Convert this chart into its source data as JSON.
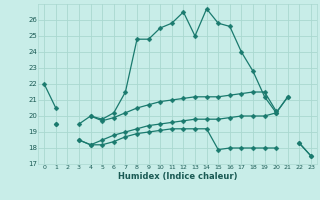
{
  "xlabel": "Humidex (Indice chaleur)",
  "x": [
    0,
    1,
    2,
    3,
    4,
    5,
    6,
    7,
    8,
    9,
    10,
    11,
    12,
    13,
    14,
    15,
    16,
    17,
    18,
    19,
    20,
    21,
    22,
    23
  ],
  "line1": [
    22,
    20.5,
    null,
    null,
    20.0,
    19.8,
    20.2,
    21.5,
    24.8,
    24.8,
    25.5,
    25.8,
    26.5,
    25.0,
    26.7,
    25.8,
    25.6,
    24.0,
    22.8,
    21.2,
    20.2,
    21.2,
    null,
    null
  ],
  "line2": [
    null,
    19.5,
    null,
    19.5,
    20.0,
    19.7,
    19.9,
    20.2,
    20.5,
    20.7,
    20.9,
    21.0,
    21.1,
    21.2,
    21.2,
    21.2,
    21.3,
    21.4,
    21.5,
    21.5,
    20.3,
    null,
    18.3,
    17.5
  ],
  "line3": [
    null,
    null,
    null,
    18.5,
    18.2,
    18.5,
    18.8,
    19.0,
    19.2,
    19.4,
    19.5,
    19.6,
    19.7,
    19.8,
    19.8,
    19.8,
    19.9,
    20.0,
    20.0,
    20.0,
    20.2,
    21.2,
    null,
    null
  ],
  "line4": [
    null,
    19.5,
    null,
    18.5,
    18.2,
    18.2,
    18.4,
    18.7,
    18.9,
    19.0,
    19.1,
    19.2,
    19.2,
    19.2,
    19.2,
    17.9,
    18.0,
    18.0,
    18.0,
    18.0,
    18.0,
    null,
    18.3,
    17.5
  ],
  "ylim": [
    17,
    27
  ],
  "xlim": [
    -0.5,
    23.5
  ],
  "yticks": [
    17,
    18,
    19,
    20,
    21,
    22,
    23,
    24,
    25,
    26
  ],
  "xticks": [
    0,
    1,
    2,
    3,
    4,
    5,
    6,
    7,
    8,
    9,
    10,
    11,
    12,
    13,
    14,
    15,
    16,
    17,
    18,
    19,
    20,
    21,
    22,
    23
  ],
  "bg_color": "#c8ede8",
  "grid_color": "#aad8d0",
  "line_color": "#1a7a6e",
  "markersize": 2.5
}
